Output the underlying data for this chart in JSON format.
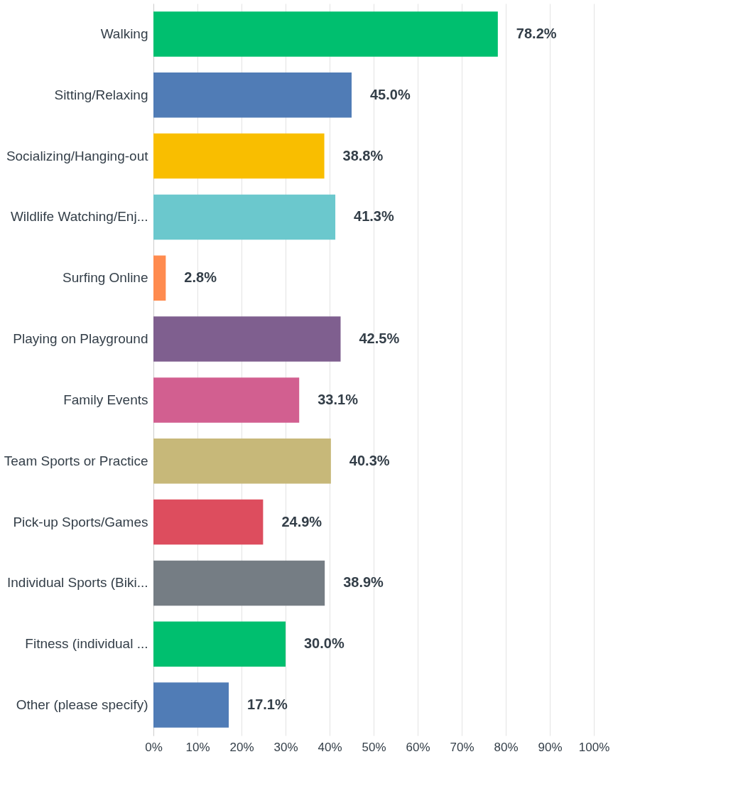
{
  "chart_data": {
    "type": "bar",
    "orientation": "horizontal",
    "categories": [
      "Walking",
      "Sitting/Relaxing",
      "Socializing/Hanging-out",
      "Wildlife Watching/Enj...",
      "Surfing Online",
      "Playing on Playground",
      "Family Events",
      "Team Sports or Practice",
      "Pick-up Sports/Games",
      "Individual Sports (Biki...",
      "Fitness (individual ...",
      "Other (please specify)"
    ],
    "values": [
      78.2,
      45.0,
      38.8,
      41.3,
      2.8,
      42.5,
      33.1,
      40.3,
      24.9,
      38.9,
      30.0,
      17.1
    ],
    "colors": [
      "#00bf6f",
      "#507cb6",
      "#f9be00",
      "#6bc8cd",
      "#ff8b4f",
      "#7f5f8f",
      "#d25f90",
      "#c7b879",
      "#dd4d5e",
      "#757d84",
      "#00bf6f",
      "#507cb6"
    ],
    "value_labels": [
      "78.2%",
      "45.0%",
      "38.8%",
      "41.3%",
      "2.8%",
      "42.5%",
      "33.1%",
      "40.3%",
      "24.9%",
      "38.9%",
      "30.0%",
      "17.1%"
    ],
    "xlim": [
      0,
      100
    ],
    "xticks": [
      {
        "value": 0,
        "label": "0%"
      },
      {
        "value": 10,
        "label": "10%"
      },
      {
        "value": 20,
        "label": "20%"
      },
      {
        "value": 30,
        "label": "30%"
      },
      {
        "value": 40,
        "label": "40%"
      },
      {
        "value": 50,
        "label": "50%"
      },
      {
        "value": 60,
        "label": "60%"
      },
      {
        "value": 70,
        "label": "70%"
      },
      {
        "value": 80,
        "label": "80%"
      },
      {
        "value": 90,
        "label": "90%"
      },
      {
        "value": 100,
        "label": "100%"
      }
    ],
    "grid": "x"
  }
}
